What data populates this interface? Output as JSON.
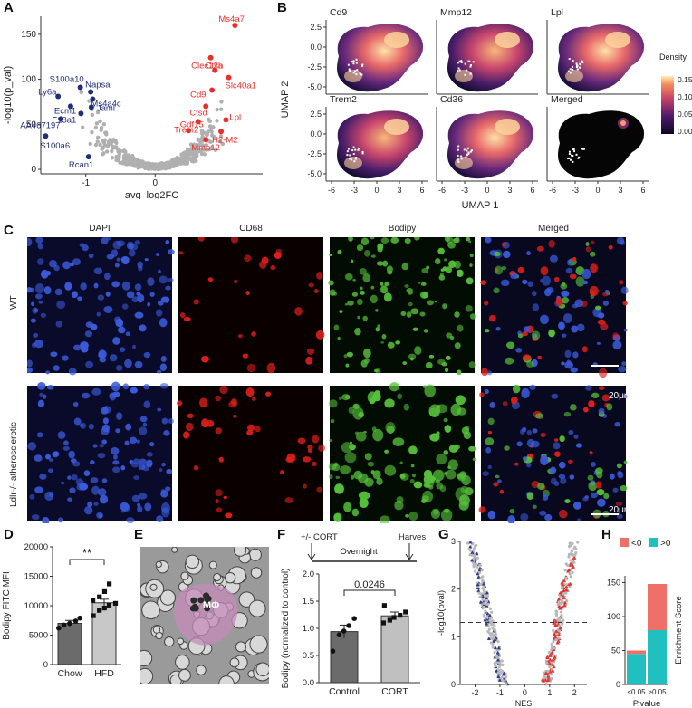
{
  "panels": {
    "a": {
      "label": "A"
    },
    "b": {
      "label": "B"
    },
    "c": {
      "label": "C"
    },
    "d": {
      "label": "D"
    },
    "e": {
      "label": "E"
    },
    "f": {
      "label": "F"
    },
    "g": {
      "label": "G"
    },
    "h": {
      "label": "H"
    }
  },
  "volcano": {
    "xlabel": "avg_log2FC",
    "ylabel": "-log10(p_val)",
    "xticks": [
      "-1",
      "0"
    ],
    "yticks": [
      "0",
      "50",
      "100",
      "150"
    ],
    "xlim": [
      -1.65,
      1.55
    ],
    "ylim": [
      -5,
      170
    ],
    "down_color": "#1f2f7a",
    "up_color": "#e8302a",
    "bg_color": "#b0b0b0",
    "down_genes": [
      {
        "name": "S100a10",
        "x": -1.08,
        "y": 91
      },
      {
        "name": "Napsa",
        "x": -0.93,
        "y": 86
      },
      {
        "name": "Ly6a",
        "x": -1.4,
        "y": 81
      },
      {
        "name": "Ms4a4c",
        "x": -0.9,
        "y": 78
      },
      {
        "name": "Ecm1",
        "x": -1.22,
        "y": 70
      },
      {
        "name": "Jaml",
        "x": -0.92,
        "y": 69
      },
      {
        "name": "F13a1",
        "x": -1.07,
        "y": 62
      },
      {
        "name": "AA467197",
        "x": -1.36,
        "y": 56
      },
      {
        "name": "S100a6",
        "x": -1.58,
        "y": 37
      },
      {
        "name": "Rcan1",
        "x": -0.96,
        "y": 14
      }
    ],
    "up_genes": [
      {
        "name": "Ms4a7",
        "x": 1.15,
        "y": 160
      },
      {
        "name": "Ctsb",
        "x": 0.8,
        "y": 124
      },
      {
        "name": "Clec12a",
        "x": 0.86,
        "y": 110
      },
      {
        "name": "Slc40a1",
        "x": 1.06,
        "y": 102
      },
      {
        "name": "Cd9",
        "x": 0.82,
        "y": 88
      },
      {
        "name": "Ctsd",
        "x": 0.73,
        "y": 70
      },
      {
        "name": "Gdf15",
        "x": 0.62,
        "y": 53
      },
      {
        "name": "Lpl",
        "x": 1.02,
        "y": 55
      },
      {
        "name": "Trem2",
        "x": 0.48,
        "y": 43
      },
      {
        "name": "H2-M2",
        "x": 0.95,
        "y": 42
      },
      {
        "name": "Mmp12",
        "x": 0.73,
        "y": 33
      }
    ]
  },
  "umap": {
    "xlabel": "UMAP 1",
    "ylabel": "UMAP 2",
    "xticks": [
      "-6",
      "-3",
      "0",
      "3",
      "6"
    ],
    "yticks": [
      "2.5",
      "0.0",
      "-2.5",
      "-5.0"
    ],
    "plots": [
      {
        "title": "Cd9"
      },
      {
        "title": "Mmp12"
      },
      {
        "title": "Lpl"
      },
      {
        "title": "Trem2"
      },
      {
        "title": "Cd36"
      },
      {
        "title": "Merged"
      }
    ],
    "colorbar": {
      "title": "Density",
      "ticks": [
        "0.15",
        "0.10",
        "0.05",
        "0.00"
      ]
    }
  },
  "microscopy": {
    "columns": [
      "DAPI",
      "CD68",
      "Bodipy",
      "Merged"
    ],
    "rows": [
      "WT",
      "Ldlr-/- atherosclerotic"
    ],
    "scalebar": "20μm"
  },
  "bar_d": {
    "ylabel": "Bodipy FITC MFI",
    "yticks": [
      "0",
      "5000",
      "10000",
      "15000",
      "20000"
    ],
    "categories": [
      "Chow",
      "HFD"
    ],
    "significance": "**"
  },
  "panel_e": {
    "label": "MΦ"
  },
  "bar_f": {
    "timeline_start": "+/- CORT",
    "timeline_mid": "Overnight",
    "timeline_end": "Harvest",
    "ylabel": "Bodipy (normalized to control)",
    "yticks": [
      "0.0",
      "0.5",
      "1.0",
      "1.5",
      "2.0"
    ],
    "categories": [
      "Control",
      "CORT"
    ],
    "pvalue": "0.0246"
  },
  "gsea_g": {
    "xlabel": "NES",
    "ylabel": "-log10(pval)",
    "xticks": [
      "-2",
      "-1",
      "0",
      "1",
      "2"
    ],
    "yticks": [
      "0",
      "1",
      "2",
      "3"
    ]
  },
  "bar_h": {
    "ylabel": "Enrichment Score",
    "xlabel": "P.value",
    "yticks": [
      "0",
      "50",
      "100",
      "150"
    ],
    "categories": [
      "<0.05",
      ">0.05"
    ],
    "legend": [
      {
        "name": "<0",
        "color": "#ef7068"
      },
      {
        "name": ">0",
        "color": "#20c0c0"
      }
    ]
  },
  "chart_data": [
    {
      "type": "scatter",
      "xlabel": "avg_log2FC",
      "ylabel": "-log10(p_val)"
    },
    {
      "type": "bar",
      "categories": [
        "Chow",
        "HFD"
      ],
      "values": [
        7000,
        10500
      ],
      "errors": [
        500,
        600
      ],
      "points": [
        [
          6200,
          6700,
          7000,
          7400,
          7900
        ],
        [
          8300,
          9200,
          9600,
          10100,
          10400,
          10900,
          11500,
          12400,
          13700
        ]
      ],
      "ylabel": "Bodipy FITC MFI",
      "ylim": [
        0,
        20000
      ],
      "annotation": "**"
    },
    {
      "type": "bar",
      "categories": [
        "Control",
        "CORT"
      ],
      "values": [
        0.94,
        1.23
      ],
      "errors": [
        0.12,
        0.07
      ],
      "points": [
        [
          0.58,
          0.88,
          0.95,
          1.05,
          1.18
        ],
        [
          1.1,
          1.15,
          1.2,
          1.24,
          1.3,
          1.42
        ]
      ],
      "ylabel": "Bodipy (normalized to control)",
      "ylim": [
        0,
        2
      ],
      "annotation": "0.0246"
    },
    {
      "type": "scatter",
      "xlabel": "NES",
      "ylabel": "-log10(pval)",
      "threshold": 1.3,
      "ylim": [
        0,
        3
      ],
      "xlim": [
        -2.6,
        2.5
      ]
    },
    {
      "type": "bar",
      "categories": [
        "<0.05",
        ">0.05"
      ],
      "series": [
        {
          "name": ">0",
          "values": [
            45,
            80
          ]
        },
        {
          "name": "<0",
          "values": [
            5,
            68
          ]
        }
      ],
      "ylabel": "Enrichment Score",
      "xlabel": "P.value",
      "ylim": [
        0,
        160
      ]
    }
  ]
}
